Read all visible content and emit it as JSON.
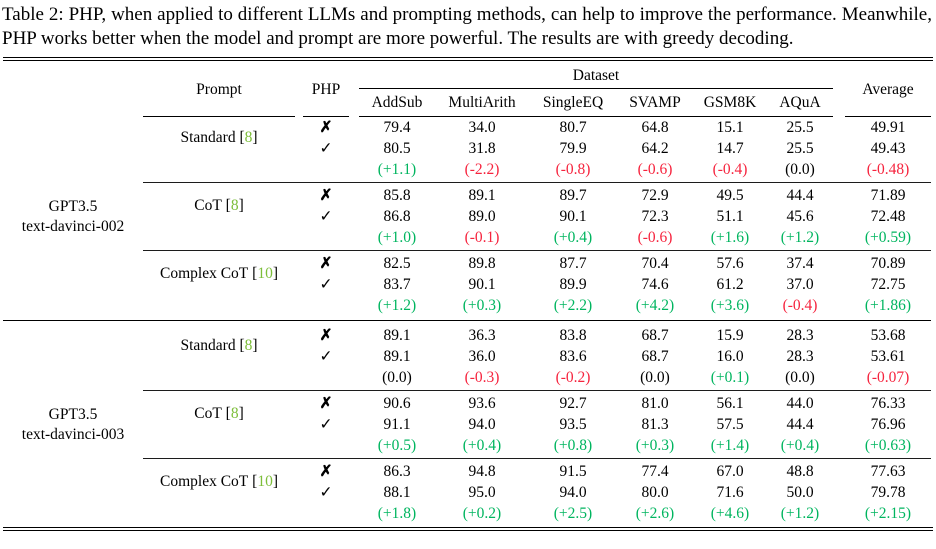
{
  "caption": "Table 2: PHP, when applied to different LLMs and prompting methods, can help to improve the performance. Meanwhile, PHP works better when the model and prompt are more powerful. The results are with greedy decoding.",
  "colors": {
    "positive": "#00b55f",
    "negative": "#f6243e",
    "neutral": "#000000",
    "citation": "#7dbe3a"
  },
  "citation_brackets": [
    "[",
    "]"
  ],
  "php_symbols": {
    "no": "✗",
    "yes": "✓"
  },
  "header": {
    "prompt": "Prompt",
    "php": "PHP",
    "dataset_group": "Dataset",
    "average": "Average",
    "datasets": [
      "AddSub",
      "MultiArith",
      "SingleEQ",
      "SVAMP",
      "GSM8K",
      "AQuA"
    ]
  },
  "groups": [
    {
      "model_lines": [
        "GPT3.5",
        "text-davinci-002"
      ],
      "blocks": [
        {
          "prompt": "Standard",
          "ref": "8",
          "no": [
            "79.4",
            "34.0",
            "80.7",
            "64.8",
            "15.1",
            "25.5",
            "49.91"
          ],
          "yes": [
            "80.5",
            "31.8",
            "79.9",
            "64.2",
            "14.7",
            "25.5",
            "49.43"
          ],
          "delta": [
            "(+1.1)",
            "(-2.2)",
            "(-0.8)",
            "(-0.6)",
            "(-0.4)",
            "(0.0)",
            "(-0.48)"
          ],
          "delta_colors": [
            "positive",
            "negative",
            "negative",
            "negative",
            "negative",
            "neutral",
            "negative"
          ]
        },
        {
          "prompt": "CoT",
          "ref": "8",
          "no": [
            "85.8",
            "89.1",
            "89.7",
            "72.9",
            "49.5",
            "44.4",
            "71.89"
          ],
          "yes": [
            "86.8",
            "89.0",
            "90.1",
            "72.3",
            "51.1",
            "45.6",
            "72.48"
          ],
          "delta": [
            "(+1.0)",
            "(-0.1)",
            "(+0.4)",
            "(-0.6)",
            "(+1.6)",
            "(+1.2)",
            "(+0.59)"
          ],
          "delta_colors": [
            "positive",
            "negative",
            "positive",
            "negative",
            "positive",
            "positive",
            "positive"
          ]
        },
        {
          "prompt": "Complex CoT",
          "ref": "10",
          "no": [
            "82.5",
            "89.8",
            "87.7",
            "70.4",
            "57.6",
            "37.4",
            "70.89"
          ],
          "yes": [
            "83.7",
            "90.1",
            "89.9",
            "74.6",
            "61.2",
            "37.0",
            "72.75"
          ],
          "delta": [
            "(+1.2)",
            "(+0.3)",
            "(+2.2)",
            "(+4.2)",
            "(+3.6)",
            "(-0.4)",
            "(+1.86)"
          ],
          "delta_colors": [
            "positive",
            "positive",
            "positive",
            "positive",
            "positive",
            "negative",
            "positive"
          ]
        }
      ]
    },
    {
      "model_lines": [
        "GPT3.5",
        "text-davinci-003"
      ],
      "blocks": [
        {
          "prompt": "Standard",
          "ref": "8",
          "no": [
            "89.1",
            "36.3",
            "83.8",
            "68.7",
            "15.9",
            "28.3",
            "53.68"
          ],
          "yes": [
            "89.1",
            "36.0",
            "83.6",
            "68.7",
            "16.0",
            "28.3",
            "53.61"
          ],
          "delta": [
            "(0.0)",
            "(-0.3)",
            "(-0.2)",
            "(0.0)",
            "(+0.1)",
            "(0.0)",
            "(-0.07)"
          ],
          "delta_colors": [
            "neutral",
            "negative",
            "negative",
            "neutral",
            "positive",
            "neutral",
            "negative"
          ]
        },
        {
          "prompt": "CoT",
          "ref": "8",
          "no": [
            "90.6",
            "93.6",
            "92.7",
            "81.0",
            "56.1",
            "44.0",
            "76.33"
          ],
          "yes": [
            "91.1",
            "94.0",
            "93.5",
            "81.3",
            "57.5",
            "44.4",
            "76.96"
          ],
          "delta": [
            "(+0.5)",
            "(+0.4)",
            "(+0.8)",
            "(+0.3)",
            "(+1.4)",
            "(+0.4)",
            "(+0.63)"
          ],
          "delta_colors": [
            "positive",
            "positive",
            "positive",
            "positive",
            "positive",
            "positive",
            "positive"
          ]
        },
        {
          "prompt": "Complex CoT",
          "ref": "10",
          "no": [
            "86.3",
            "94.8",
            "91.5",
            "77.4",
            "67.0",
            "48.8",
            "77.63"
          ],
          "yes": [
            "88.1",
            "95.0",
            "94.0",
            "80.0",
            "71.6",
            "50.0",
            "79.78"
          ],
          "delta": [
            "(+1.8)",
            "(+0.2)",
            "(+2.5)",
            "(+2.6)",
            "(+4.6)",
            "(+1.2)",
            "(+2.15)"
          ],
          "delta_colors": [
            "positive",
            "positive",
            "positive",
            "positive",
            "positive",
            "positive",
            "positive"
          ]
        }
      ]
    }
  ]
}
